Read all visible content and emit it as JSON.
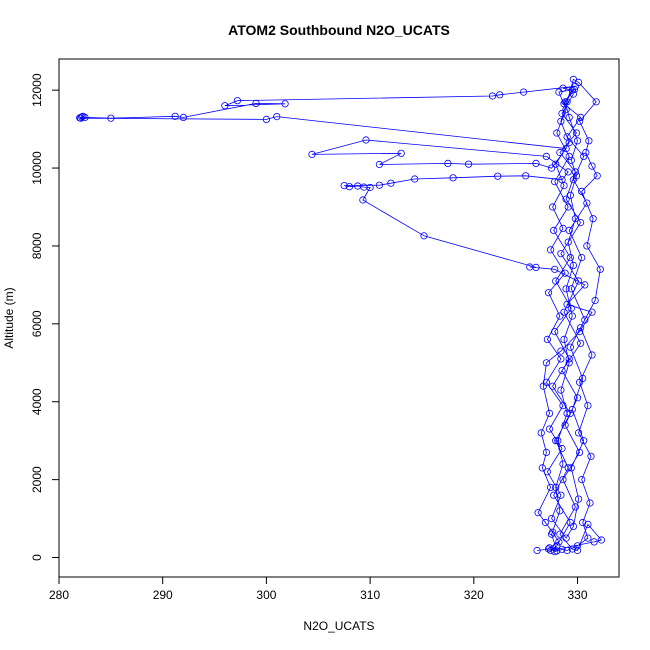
{
  "chart_data": {
    "type": "line",
    "title": "ATOM2 Southbound N2O_UCATS",
    "xlabel": "N2O_UCATS",
    "ylabel": "Altitude (m)",
    "xlim": [
      280,
      334
    ],
    "ylim": [
      -500,
      12800
    ],
    "x_ticks": [
      280,
      290,
      300,
      310,
      320,
      330
    ],
    "y_ticks": [
      0,
      2000,
      4000,
      6000,
      8000,
      10000,
      12000
    ],
    "grid": false,
    "legend": "none",
    "series": [
      {
        "color": "#0000ff",
        "marker": "open-circle",
        "points": [
          [
            326.1,
            180
          ],
          [
            327.2,
            220
          ],
          [
            328.0,
            170
          ],
          [
            327.5,
            600
          ],
          [
            328.3,
            1200
          ],
          [
            327.9,
            1800
          ],
          [
            328.6,
            2400
          ],
          [
            328.1,
            3000
          ],
          [
            329.0,
            3700
          ],
          [
            328.4,
            4300
          ],
          [
            329.2,
            5000
          ],
          [
            328.7,
            5600
          ],
          [
            329.5,
            6200
          ],
          [
            328.9,
            6900
          ],
          [
            329.6,
            7500
          ],
          [
            329.1,
            8100
          ],
          [
            329.8,
            8700
          ],
          [
            329.3,
            9300
          ],
          [
            329.9,
            9800
          ],
          [
            329.4,
            10200
          ],
          [
            330.0,
            10700
          ],
          [
            329.2,
            11300
          ],
          [
            328.8,
            11700
          ],
          [
            329.5,
            12000
          ],
          [
            328.6,
            12050
          ],
          [
            329.8,
            12100
          ],
          [
            324.8,
            11950
          ],
          [
            322.5,
            11880
          ],
          [
            321.8,
            11850
          ],
          [
            297.2,
            11730
          ],
          [
            296.0,
            11600
          ],
          [
            301.8,
            11650
          ],
          [
            299.0,
            11660
          ],
          [
            292.0,
            11300
          ],
          [
            291.2,
            11330
          ],
          [
            285.0,
            11280
          ],
          [
            282.5,
            11300
          ],
          [
            282.2,
            11310
          ],
          [
            282.0,
            11290
          ],
          [
            282.3,
            11330
          ],
          [
            282.1,
            11280
          ],
          [
            300.0,
            11250
          ],
          [
            301.0,
            11320
          ],
          [
            328.9,
            10500
          ],
          [
            327.5,
            10000
          ],
          [
            326.0,
            10120
          ],
          [
            319.5,
            10100
          ],
          [
            317.5,
            10120
          ],
          [
            310.9,
            10090
          ],
          [
            313.0,
            10380
          ],
          [
            304.4,
            10350
          ],
          [
            309.6,
            10720
          ],
          [
            327.0,
            10300
          ],
          [
            329.1,
            9900
          ],
          [
            328.5,
            9700
          ],
          [
            325.0,
            9800
          ],
          [
            322.3,
            9790
          ],
          [
            318.0,
            9750
          ],
          [
            314.3,
            9720
          ],
          [
            312.0,
            9610
          ],
          [
            310.9,
            9560
          ],
          [
            307.5,
            9550
          ],
          [
            308.0,
            9520
          ],
          [
            308.8,
            9540
          ],
          [
            309.4,
            9510
          ],
          [
            310.0,
            9500
          ],
          [
            309.3,
            9180
          ],
          [
            315.2,
            8260
          ],
          [
            326.0,
            7450
          ],
          [
            325.4,
            7460
          ],
          [
            327.8,
            7400
          ],
          [
            330.7,
            7000
          ],
          [
            329.0,
            6500
          ],
          [
            331.4,
            6300
          ],
          [
            330.2,
            5800
          ],
          [
            328.4,
            5300
          ],
          [
            327.0,
            5000
          ],
          [
            326.7,
            4400
          ],
          [
            327.3,
            3700
          ],
          [
            326.5,
            3200
          ],
          [
            327.0,
            2700
          ],
          [
            326.6,
            2300
          ],
          [
            327.4,
            1800
          ],
          [
            326.2,
            1150
          ],
          [
            326.9,
            900
          ],
          [
            327.6,
            650
          ],
          [
            328.2,
            400
          ],
          [
            327.3,
            250
          ],
          [
            327.8,
            150
          ],
          [
            328.5,
            210
          ],
          [
            329.0,
            180
          ],
          [
            330.0,
            300
          ],
          [
            331.0,
            500
          ],
          [
            330.5,
            900
          ],
          [
            331.2,
            1400
          ],
          [
            330.4,
            2000
          ],
          [
            331.3,
            2600
          ],
          [
            330.1,
            3200
          ],
          [
            331.0,
            3900
          ],
          [
            330.2,
            4500
          ],
          [
            331.4,
            5200
          ],
          [
            330.3,
            5900
          ],
          [
            331.7,
            6600
          ],
          [
            332.2,
            7400
          ],
          [
            330.9,
            8000
          ],
          [
            331.5,
            8700
          ],
          [
            330.4,
            9400
          ],
          [
            331.9,
            9800
          ],
          [
            331.4,
            10050
          ],
          [
            330.8,
            10400
          ],
          [
            331.1,
            10700
          ],
          [
            330.2,
            11200
          ],
          [
            331.8,
            11700
          ],
          [
            330.1,
            12200
          ],
          [
            329.6,
            12280
          ],
          [
            329.0,
            11700
          ],
          [
            328.4,
            11200
          ],
          [
            329.2,
            10650
          ],
          [
            327.9,
            10100
          ],
          [
            328.7,
            9550
          ],
          [
            327.6,
            9000
          ],
          [
            328.6,
            8450
          ],
          [
            327.4,
            7900
          ],
          [
            328.8,
            7300
          ],
          [
            327.2,
            6800
          ],
          [
            328.3,
            6200
          ],
          [
            327.1,
            5600
          ],
          [
            328.4,
            5100
          ],
          [
            327.0,
            4500
          ],
          [
            328.6,
            3900
          ],
          [
            327.3,
            3300
          ],
          [
            328.5,
            2800
          ],
          [
            327.1,
            2200
          ],
          [
            328.4,
            1600
          ],
          [
            327.5,
            1000
          ],
          [
            328.9,
            500
          ],
          [
            329.6,
            800
          ],
          [
            330.1,
            1500
          ],
          [
            329.4,
            2300
          ],
          [
            330.6,
            3000
          ],
          [
            329.5,
            3800
          ],
          [
            330.5,
            4600
          ],
          [
            329.3,
            5400
          ],
          [
            330.7,
            6100
          ],
          [
            329.4,
            6900
          ],
          [
            330.4,
            7700
          ],
          [
            329.2,
            8400
          ],
          [
            330.9,
            9100
          ],
          [
            329.6,
            9700
          ],
          [
            330.6,
            10300
          ],
          [
            329.0,
            10800
          ],
          [
            330.3,
            11300
          ],
          [
            328.7,
            11650
          ],
          [
            329.7,
            12020
          ],
          [
            328.2,
            11950
          ],
          [
            328.9,
            11500
          ],
          [
            328.0,
            10900
          ],
          [
            329.2,
            10300
          ],
          [
            327.8,
            9650
          ],
          [
            329.1,
            9000
          ],
          [
            327.7,
            8400
          ],
          [
            329.3,
            7700
          ],
          [
            327.9,
            7100
          ],
          [
            329.4,
            6400
          ],
          [
            327.8,
            5800
          ],
          [
            329.2,
            5100
          ],
          [
            327.6,
            4400
          ],
          [
            329.3,
            3700
          ],
          [
            327.9,
            3000
          ],
          [
            329.1,
            2300
          ],
          [
            327.7,
            1600
          ],
          [
            329.3,
            900
          ],
          [
            328.0,
            300
          ],
          [
            327.4,
            180
          ],
          [
            331.6,
            400
          ],
          [
            332.3,
            450
          ],
          [
            331.0,
            850
          ],
          [
            330.0,
            180
          ],
          [
            329.5,
            220
          ],
          [
            328.3,
            600
          ],
          [
            329.8,
            1300
          ],
          [
            328.6,
            2000
          ],
          [
            330.2,
            2700
          ],
          [
            328.8,
            3400
          ],
          [
            330.0,
            4100
          ],
          [
            328.5,
            4800
          ],
          [
            330.3,
            5500
          ],
          [
            328.7,
            6300
          ],
          [
            330.1,
            7100
          ],
          [
            328.4,
            7800
          ],
          [
            330.3,
            8600
          ],
          [
            328.9,
            9200
          ],
          [
            329.8,
            9900
          ],
          [
            328.3,
            10400
          ],
          [
            329.9,
            10900
          ],
          [
            328.5,
            11400
          ],
          [
            329.6,
            11900
          ]
        ]
      }
    ]
  }
}
